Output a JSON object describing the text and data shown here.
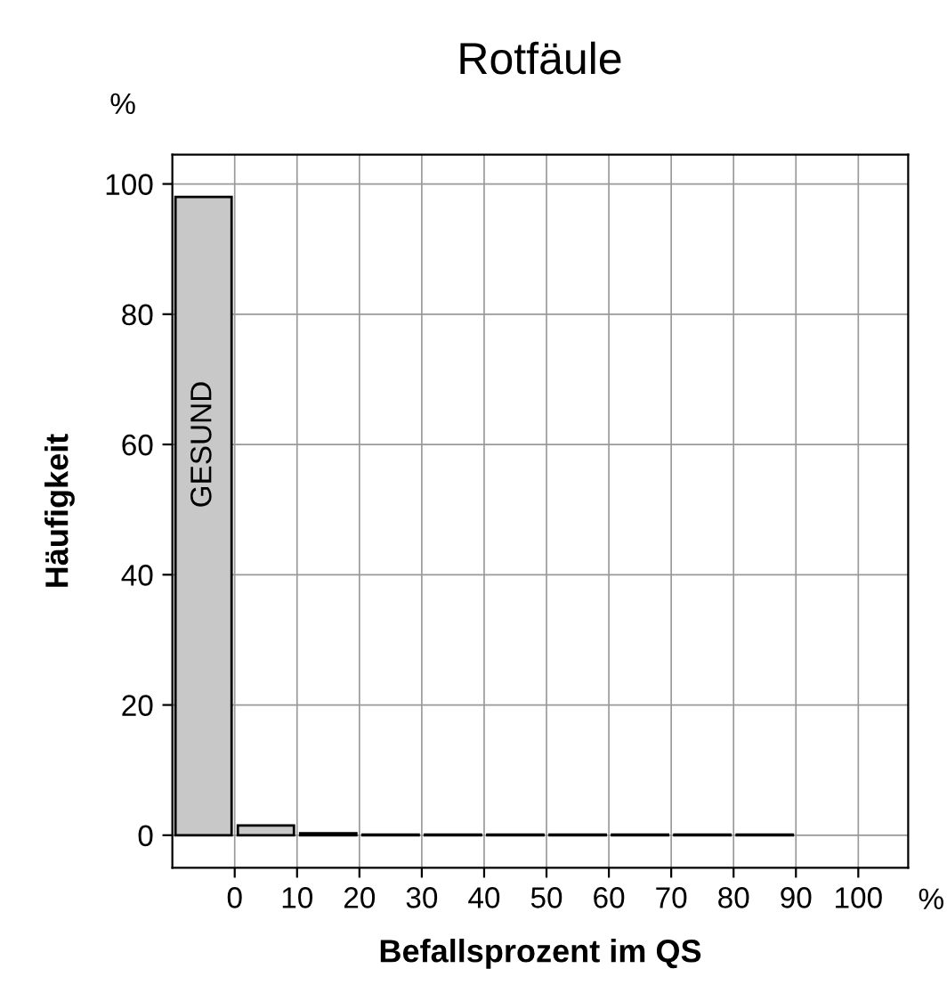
{
  "chart_data": {
    "type": "histogram",
    "title": "Rotfäule",
    "xlabel": "Befallsprozent im QS",
    "ylabel": "Häufigkeit",
    "bins": [
      -10,
      0,
      10,
      20,
      30,
      40,
      50,
      60,
      70,
      80,
      90
    ],
    "values": [
      98,
      1.5,
      0.3,
      0.1,
      0.1,
      0.1,
      0.1,
      0.1,
      0.1,
      0.1
    ],
    "color": "#c8c8c8",
    "annotations": [
      "GESUND",
      "%",
      "%"
    ],
    "xlim": [
      -10,
      108
    ],
    "ylim": [
      -5,
      104.5
    ],
    "xticks": [
      0,
      10,
      20,
      30,
      40,
      50,
      60,
      70,
      80,
      90,
      100
    ],
    "yticks": [
      0,
      20,
      40,
      60,
      80,
      100
    ],
    "grid": true
  }
}
